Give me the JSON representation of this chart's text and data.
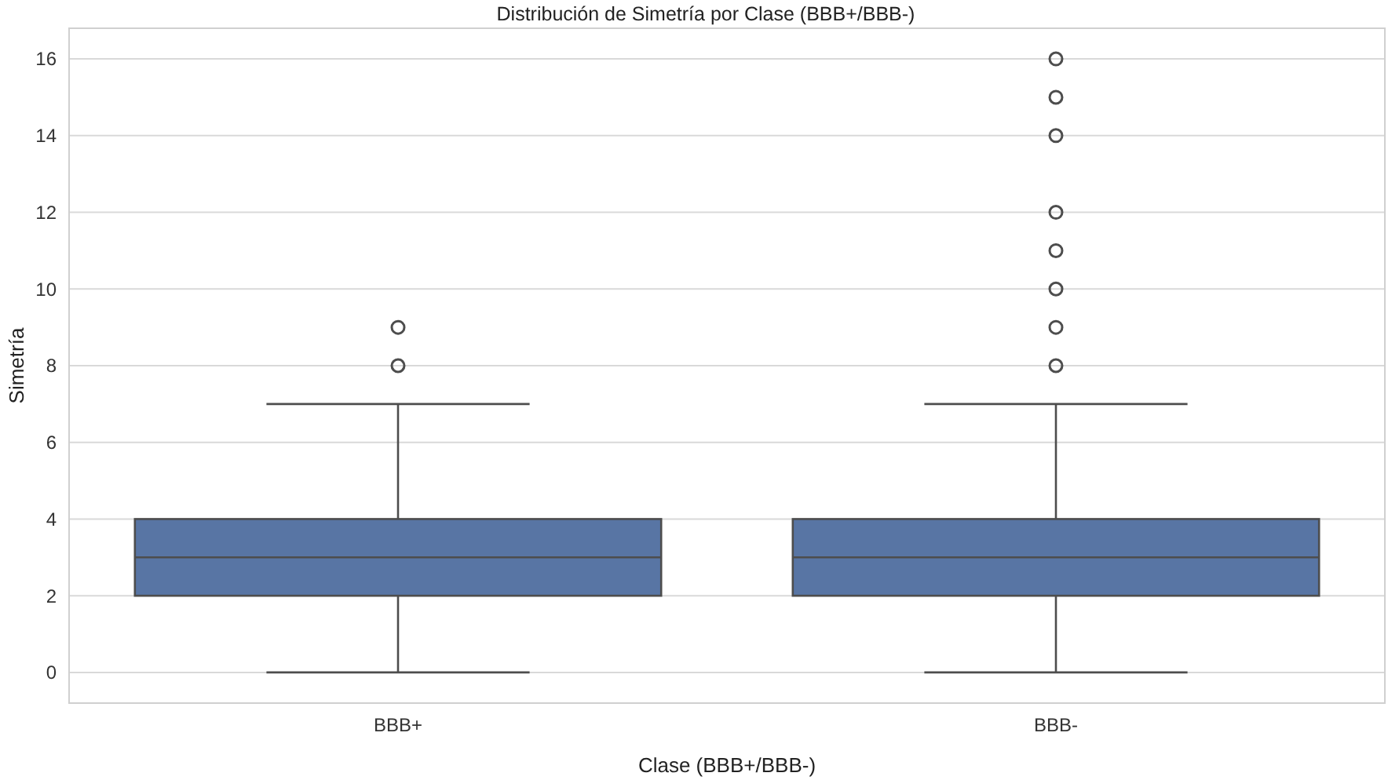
{
  "chart_data": {
    "type": "box",
    "title": "Distribución de Simetría por Clase (BBB+/BBB-)",
    "xlabel": "Clase (BBB+/BBB-)",
    "ylabel": "Simetría",
    "categories": [
      "BBB+",
      "BBB-"
    ],
    "color": "#5875a4",
    "boxes": [
      {
        "low": 0,
        "q1": 2,
        "median": 3,
        "q3": 4,
        "high": 7,
        "outliers": [
          8,
          9
        ]
      },
      {
        "low": 0,
        "q1": 2,
        "median": 3,
        "q3": 4,
        "high": 7,
        "outliers": [
          8,
          9,
          10,
          11,
          12,
          14,
          15,
          16
        ]
      }
    ],
    "ylim": [
      -0.8,
      16.8
    ],
    "yticks": [
      0,
      2,
      4,
      6,
      8,
      10,
      12,
      14,
      16
    ],
    "grid": "y"
  }
}
